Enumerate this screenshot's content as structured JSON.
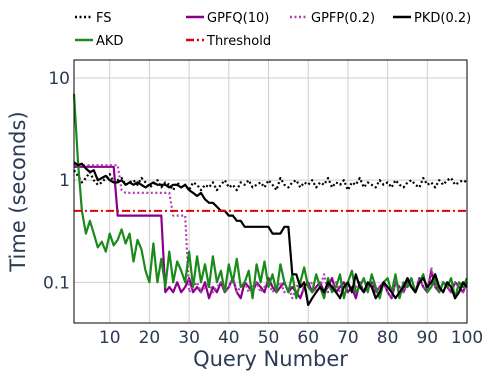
{
  "chart_data": {
    "type": "line",
    "title": "",
    "xlabel": "Query Number",
    "ylabel": "Time (seconds)",
    "xlim": [
      1,
      100
    ],
    "ylim": [
      0.04,
      15
    ],
    "yscale": "log",
    "grid": true,
    "legend_position": "top",
    "x_ticks": [
      10,
      20,
      30,
      40,
      50,
      60,
      70,
      80,
      90,
      100
    ],
    "y_ticks": [
      {
        "value": 0.1,
        "label": "0.1"
      },
      {
        "value": 1,
        "label": "1"
      },
      {
        "value": 10,
        "label": "10"
      }
    ],
    "series": [
      {
        "name": "FS",
        "color": "#000000",
        "dash": "dotted",
        "x_start": 1,
        "values": [
          1.25,
          1.1,
          0.95,
          1.05,
          1.2,
          1.0,
          0.9,
          0.95,
          1.05,
          1.15,
          0.95,
          1.0,
          1.05,
          0.9,
          0.95,
          1.0,
          0.9,
          1.05,
          0.95,
          0.85,
          0.9,
          1.0,
          0.85,
          0.95,
          0.9,
          0.8,
          0.95,
          0.85,
          0.9,
          0.8,
          0.95,
          0.9,
          0.8,
          0.9,
          0.85,
          0.95,
          0.8,
          0.9,
          1.0,
          0.85,
          0.9,
          0.8,
          0.95,
          0.9,
          1.0,
          0.85,
          0.9,
          0.95,
          0.85,
          1.0,
          0.9,
          0.8,
          1.05,
          0.9,
          0.85,
          0.95,
          1.0,
          0.85,
          0.95,
          0.9,
          1.0,
          0.85,
          0.95,
          0.9,
          1.05,
          0.85,
          0.95,
          0.9,
          1.0,
          0.8,
          0.95,
          0.9,
          1.05,
          0.85,
          0.95,
          0.9,
          0.85,
          1.0,
          0.9,
          0.95,
          0.85,
          1.0,
          0.9,
          0.85,
          0.95,
          1.0,
          0.9,
          0.85,
          1.05,
          0.9,
          0.95,
          0.85,
          1.0,
          0.9,
          1.0,
          1.05,
          0.9,
          0.95,
          1.0,
          0.95
        ]
      },
      {
        "name": "AKD",
        "color": "#1a8a1a",
        "dash": "solid",
        "x_start": 1,
        "values": [
          7.0,
          1.5,
          0.5,
          0.3,
          0.4,
          0.3,
          0.22,
          0.25,
          0.2,
          0.3,
          0.23,
          0.26,
          0.33,
          0.24,
          0.3,
          0.16,
          0.26,
          0.21,
          0.13,
          0.1,
          0.24,
          0.1,
          0.17,
          0.09,
          0.2,
          0.1,
          0.16,
          0.13,
          0.1,
          0.2,
          0.09,
          0.18,
          0.1,
          0.15,
          0.09,
          0.18,
          0.1,
          0.13,
          0.08,
          0.15,
          0.1,
          0.17,
          0.09,
          0.1,
          0.13,
          0.07,
          0.15,
          0.1,
          0.16,
          0.09,
          0.12,
          0.08,
          0.15,
          0.1,
          0.08,
          0.12,
          0.07,
          0.1,
          0.14,
          0.09,
          0.08,
          0.12,
          0.09,
          0.07,
          0.11,
          0.08,
          0.09,
          0.12,
          0.07,
          0.1,
          0.13,
          0.08,
          0.09,
          0.11,
          0.08,
          0.12,
          0.09,
          0.07,
          0.1,
          0.11,
          0.08,
          0.12,
          0.07,
          0.1,
          0.09,
          0.11,
          0.08,
          0.1,
          0.12,
          0.08,
          0.09,
          0.11,
          0.08,
          0.1,
          0.09,
          0.11,
          0.07,
          0.1,
          0.09,
          0.11
        ]
      },
      {
        "name": "GPFQ(10)",
        "color": "#8a008a",
        "dash": "solid",
        "x_start": 1,
        "values": [
          1.35,
          1.35,
          1.35,
          1.35,
          1.35,
          1.35,
          1.35,
          1.35,
          1.35,
          1.35,
          1.35,
          0.45,
          0.45,
          0.45,
          0.45,
          0.45,
          0.45,
          0.45,
          0.45,
          0.45,
          0.45,
          0.45,
          0.45,
          0.08,
          0.09,
          0.08,
          0.1,
          0.08,
          0.09,
          0.11,
          0.08,
          0.09,
          0.08,
          0.1,
          0.07,
          0.09,
          0.08,
          0.1,
          0.08,
          0.09,
          0.11,
          0.08,
          0.07,
          0.1,
          0.09,
          0.08,
          0.1,
          0.09,
          0.08,
          0.11,
          0.09,
          0.08,
          0.09,
          0.1,
          0.08,
          0.09,
          0.08,
          0.07,
          0.09,
          0.1,
          0.08,
          0.09,
          0.1,
          0.08,
          0.09,
          0.11,
          0.08,
          0.09,
          0.1,
          0.08,
          0.09,
          0.07,
          0.1,
          0.08,
          0.09,
          0.1,
          0.08,
          0.09,
          0.1,
          0.08,
          0.07,
          0.1,
          0.09,
          0.08,
          0.1,
          0.09,
          0.08,
          0.11,
          0.09,
          0.08,
          0.13,
          0.09,
          0.08,
          0.1,
          0.09,
          0.08,
          0.1,
          0.09,
          0.08,
          0.1
        ]
      },
      {
        "name": "GPFP(0.2)",
        "color": "#b040b0",
        "dash": "dotted",
        "x_start": 1,
        "values": [
          1.4,
          1.4,
          1.4,
          1.4,
          1.4,
          1.4,
          1.4,
          1.4,
          1.4,
          1.4,
          1.4,
          1.4,
          0.8,
          0.75,
          0.75,
          0.75,
          0.75,
          0.75,
          0.75,
          0.75,
          0.75,
          0.75,
          0.75,
          0.75,
          0.75,
          0.45,
          0.45,
          0.45,
          0.45,
          0.08,
          0.09,
          0.1,
          0.08,
          0.09,
          0.1,
          0.08,
          0.09,
          0.1,
          0.08,
          0.09,
          0.11,
          0.08,
          0.09,
          0.1,
          0.08,
          0.09,
          0.1,
          0.08,
          0.09,
          0.1,
          0.08,
          0.09,
          0.1,
          0.08,
          0.09,
          0.07,
          0.09,
          0.1,
          0.08,
          0.09,
          0.1,
          0.08,
          0.09,
          0.12,
          0.08,
          0.09,
          0.1,
          0.08,
          0.09,
          0.1,
          0.08,
          0.09,
          0.1,
          0.08,
          0.09,
          0.1,
          0.08,
          0.09,
          0.1,
          0.08,
          0.07,
          0.1,
          0.09,
          0.08,
          0.1,
          0.09,
          0.08,
          0.11,
          0.09,
          0.08,
          0.14,
          0.09,
          0.08,
          0.1,
          0.09,
          0.08,
          0.1,
          0.09,
          0.08,
          0.1
        ]
      },
      {
        "name": "PKD(0.2)",
        "color": "#000000",
        "dash": "solid",
        "x_start": 1,
        "values": [
          1.5,
          1.4,
          1.45,
          1.3,
          1.2,
          1.25,
          1.0,
          1.05,
          1.1,
          1.0,
          0.95,
          0.95,
          1.0,
          0.9,
          0.95,
          0.9,
          0.95,
          0.9,
          0.85,
          0.9,
          0.95,
          0.9,
          0.9,
          0.9,
          0.85,
          0.9,
          0.9,
          0.85,
          0.9,
          0.8,
          0.75,
          0.7,
          0.75,
          0.65,
          0.6,
          0.6,
          0.55,
          0.5,
          0.5,
          0.45,
          0.45,
          0.4,
          0.4,
          0.35,
          0.35,
          0.35,
          0.35,
          0.35,
          0.35,
          0.35,
          0.3,
          0.3,
          0.3,
          0.35,
          0.35,
          0.12,
          0.12,
          0.09,
          0.1,
          0.06,
          0.07,
          0.08,
          0.09,
          0.08,
          0.1,
          0.09,
          0.08,
          0.07,
          0.09,
          0.1,
          0.08,
          0.12,
          0.09,
          0.08,
          0.1,
          0.09,
          0.07,
          0.08,
          0.1,
          0.09,
          0.08,
          0.07,
          0.08,
          0.09,
          0.11,
          0.09,
          0.08,
          0.1,
          0.11,
          0.09,
          0.1,
          0.12,
          0.09,
          0.08,
          0.1,
          0.09,
          0.07,
          0.08,
          0.1,
          0.09
        ]
      },
      {
        "name": "Threshold",
        "color": "#e00000",
        "dash": "dashdot",
        "x_start": 1,
        "values": [
          0.5,
          0.5,
          0.5,
          0.5,
          0.5,
          0.5,
          0.5,
          0.5,
          0.5,
          0.5,
          0.5,
          0.5,
          0.5,
          0.5,
          0.5,
          0.5,
          0.5,
          0.5,
          0.5,
          0.5,
          0.5,
          0.5,
          0.5,
          0.5,
          0.5,
          0.5,
          0.5,
          0.5,
          0.5,
          0.5,
          0.5,
          0.5,
          0.5,
          0.5,
          0.5,
          0.5,
          0.5,
          0.5,
          0.5,
          0.5,
          0.5,
          0.5,
          0.5,
          0.5,
          0.5,
          0.5,
          0.5,
          0.5,
          0.5,
          0.5,
          0.5,
          0.5,
          0.5,
          0.5,
          0.5,
          0.5,
          0.5,
          0.5,
          0.5,
          0.5,
          0.5,
          0.5,
          0.5,
          0.5,
          0.5,
          0.5,
          0.5,
          0.5,
          0.5,
          0.5,
          0.5,
          0.5,
          0.5,
          0.5,
          0.5,
          0.5,
          0.5,
          0.5,
          0.5,
          0.5,
          0.5,
          0.5,
          0.5,
          0.5,
          0.5,
          0.5,
          0.5,
          0.5,
          0.5,
          0.5,
          0.5,
          0.5,
          0.5,
          0.5,
          0.5,
          0.5,
          0.5,
          0.5,
          0.5,
          0.5
        ]
      }
    ],
    "legend_rows": [
      [
        "FS",
        "GPFQ(10)",
        "GPFP(0.2)",
        "PKD(0.2)"
      ],
      [
        "AKD",
        "Threshold"
      ]
    ]
  }
}
